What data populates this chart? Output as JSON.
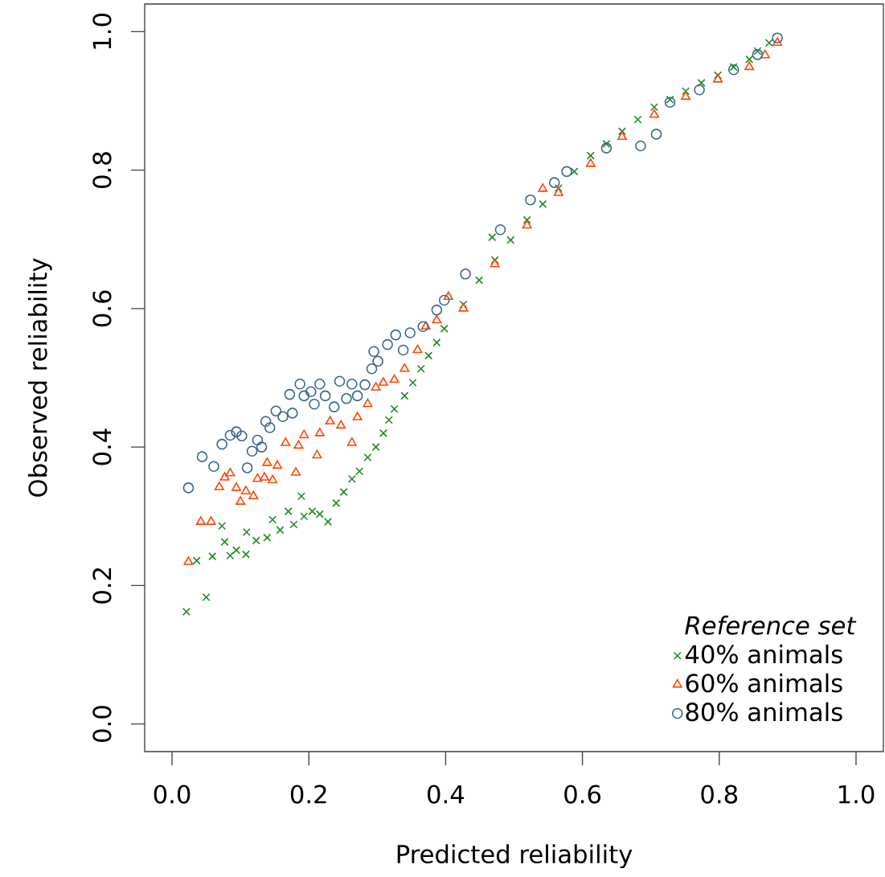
{
  "chart_data": {
    "type": "scatter",
    "xlabel": "Predicted reliability",
    "ylabel": "Observed reliability",
    "legend_title": "Reference set",
    "legend": "bottom right",
    "xlim": [
      -0.04,
      1.04
    ],
    "ylim": [
      -0.04,
      1.04
    ],
    "xticks": [
      {
        "value": 0,
        "label": "0.0"
      },
      {
        "value": 0.2,
        "label": "0.2"
      },
      {
        "value": 0.4,
        "label": "0.4"
      },
      {
        "value": 0.6,
        "label": "0.6"
      },
      {
        "value": 0.8,
        "label": "0.8"
      },
      {
        "value": 1,
        "label": "1.0"
      }
    ],
    "yticks": [
      {
        "value": 0,
        "label": "0.0"
      },
      {
        "value": 0.2,
        "label": "0.2"
      },
      {
        "value": 0.4,
        "label": "0.4"
      },
      {
        "value": 0.6,
        "label": "0.6"
      },
      {
        "value": 0.8,
        "label": "0.8"
      },
      {
        "value": 1,
        "label": "1.0"
      }
    ],
    "series": [
      {
        "name": "40% animals",
        "color": "#228b22",
        "marker": "cross",
        "x": [
          0.021,
          0.05,
          0.036,
          0.059,
          0.073,
          0.077,
          0.085,
          0.094,
          0.108,
          0.109,
          0.123,
          0.139,
          0.147,
          0.158,
          0.17,
          0.178,
          0.189,
          0.193,
          0.205,
          0.216,
          0.228,
          0.24,
          0.251,
          0.263,
          0.274,
          0.286,
          0.298,
          0.309,
          0.317,
          0.325,
          0.34,
          0.352,
          0.364,
          0.375,
          0.387,
          0.398,
          0.426,
          0.449,
          0.468,
          0.472,
          0.495,
          0.519,
          0.542,
          0.565,
          0.588,
          0.612,
          0.635,
          0.658,
          0.681,
          0.705,
          0.728,
          0.751,
          0.774,
          0.798,
          0.821,
          0.844,
          0.856,
          0.873
        ],
        "values": [
          0.162,
          0.183,
          0.236,
          0.242,
          0.286,
          0.263,
          0.243,
          0.251,
          0.245,
          0.277,
          0.265,
          0.269,
          0.295,
          0.28,
          0.307,
          0.288,
          0.329,
          0.3,
          0.307,
          0.303,
          0.292,
          0.319,
          0.335,
          0.354,
          0.365,
          0.385,
          0.4,
          0.42,
          0.439,
          0.455,
          0.474,
          0.493,
          0.513,
          0.532,
          0.551,
          0.571,
          0.606,
          0.641,
          0.703,
          0.67,
          0.699,
          0.728,
          0.751,
          0.774,
          0.798,
          0.821,
          0.838,
          0.856,
          0.873,
          0.891,
          0.902,
          0.914,
          0.926,
          0.937,
          0.949,
          0.96,
          0.972,
          0.984
        ]
      },
      {
        "name": "60% animals",
        "color": "#ff4500",
        "marker": "triangle",
        "x": [
          0.024,
          0.042,
          0.057,
          0.069,
          0.077,
          0.085,
          0.094,
          0.1,
          0.108,
          0.119,
          0.125,
          0.135,
          0.147,
          0.139,
          0.154,
          0.166,
          0.181,
          0.185,
          0.193,
          0.212,
          0.216,
          0.231,
          0.247,
          0.263,
          0.271,
          0.286,
          0.298,
          0.309,
          0.325,
          0.34,
          0.359,
          0.371,
          0.387,
          0.404,
          0.426,
          0.472,
          0.519,
          0.542,
          0.565,
          0.612,
          0.658,
          0.705,
          0.751,
          0.798,
          0.844,
          0.867,
          0.885
        ],
        "values": [
          0.234,
          0.292,
          0.292,
          0.342,
          0.356,
          0.362,
          0.341,
          0.321,
          0.336,
          0.329,
          0.354,
          0.356,
          0.352,
          0.377,
          0.373,
          0.406,
          0.363,
          0.402,
          0.417,
          0.388,
          0.42,
          0.437,
          0.431,
          0.406,
          0.443,
          0.462,
          0.486,
          0.493,
          0.497,
          0.513,
          0.54,
          0.574,
          0.583,
          0.617,
          0.6,
          0.664,
          0.72,
          0.773,
          0.767,
          0.809,
          0.848,
          0.88,
          0.906,
          0.931,
          0.949,
          0.966,
          0.984
        ]
      },
      {
        "name": "80% animals",
        "color": "#3a6690",
        "marker": "circle",
        "x": [
          0.024,
          0.044,
          0.061,
          0.073,
          0.085,
          0.094,
          0.102,
          0.11,
          0.117,
          0.125,
          0.131,
          0.137,
          0.143,
          0.152,
          0.162,
          0.176,
          0.172,
          0.187,
          0.193,
          0.203,
          0.208,
          0.216,
          0.224,
          0.237,
          0.245,
          0.255,
          0.263,
          0.271,
          0.282,
          0.292,
          0.295,
          0.301,
          0.315,
          0.327,
          0.338,
          0.348,
          0.367,
          0.387,
          0.398,
          0.429,
          0.48,
          0.524,
          0.559,
          0.577,
          0.635,
          0.685,
          0.708,
          0.728,
          0.771,
          0.821,
          0.856,
          0.885
        ],
        "values": [
          0.341,
          0.386,
          0.372,
          0.404,
          0.417,
          0.422,
          0.416,
          0.37,
          0.394,
          0.41,
          0.4,
          0.437,
          0.428,
          0.452,
          0.444,
          0.449,
          0.476,
          0.491,
          0.474,
          0.48,
          0.462,
          0.491,
          0.474,
          0.458,
          0.495,
          0.47,
          0.491,
          0.474,
          0.49,
          0.513,
          0.538,
          0.524,
          0.548,
          0.562,
          0.54,
          0.565,
          0.574,
          0.598,
          0.612,
          0.65,
          0.714,
          0.757,
          0.782,
          0.798,
          0.832,
          0.835,
          0.852,
          0.898,
          0.916,
          0.945,
          0.967,
          0.991
        ]
      }
    ]
  }
}
